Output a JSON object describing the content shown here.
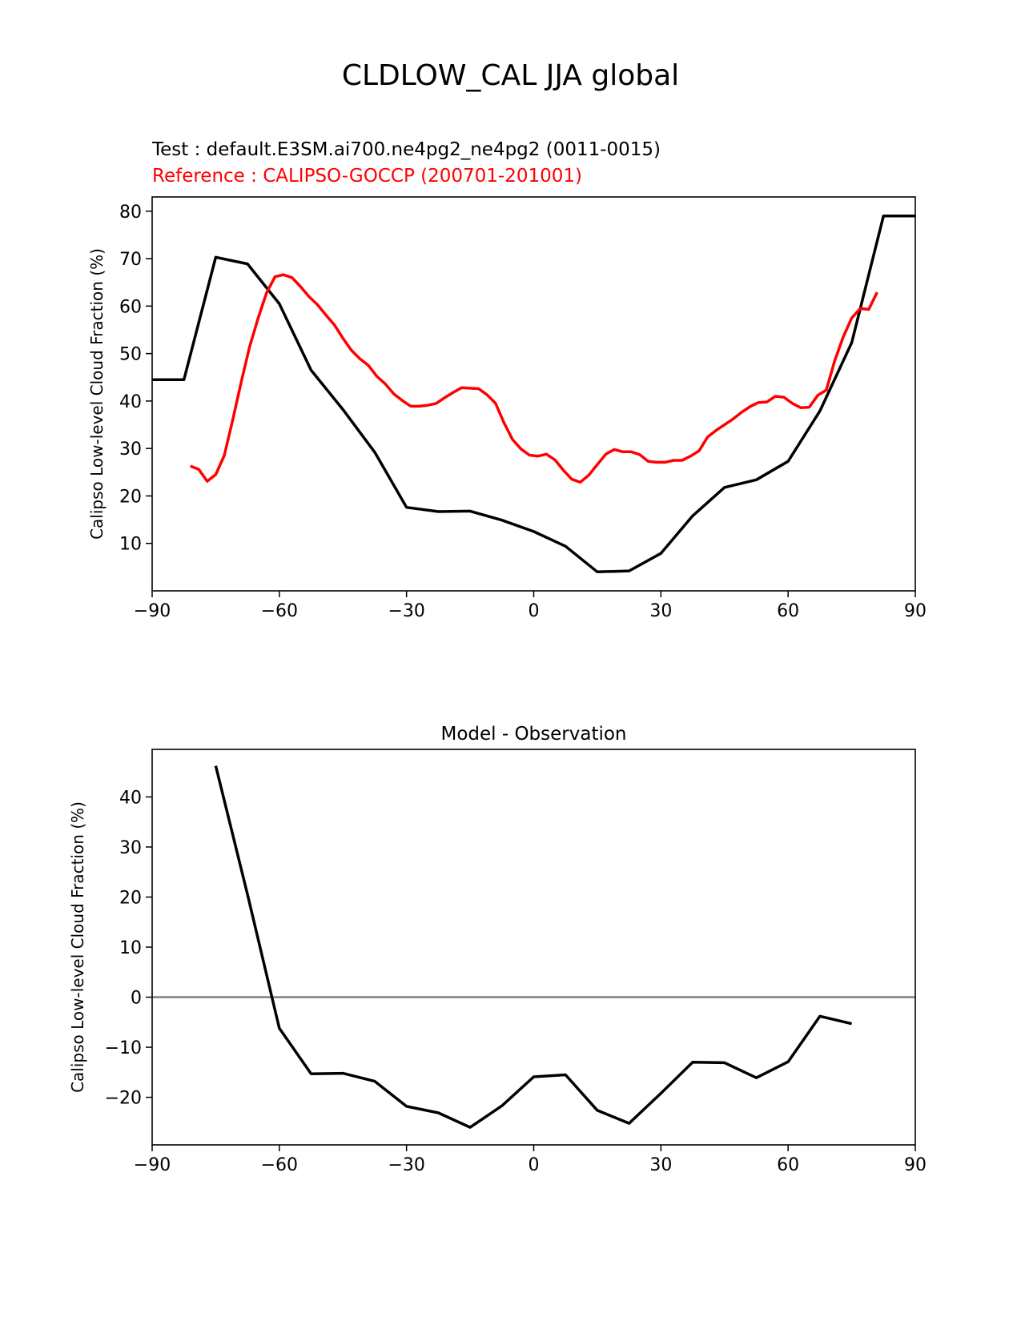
{
  "figure": {
    "title": "CLDLOW_CAL JJA global",
    "test_label": "Test : default.E3SM.ai700.ne4pg2_ne4pg2 (0011-0015)",
    "reference_label": "Reference : CALIPSO-GOCCP (200701-201001)"
  },
  "colors": {
    "test": "#000000",
    "reference": "#ff0000",
    "diff": "#000000",
    "zero_line": "#808080"
  },
  "chart_data": [
    {
      "type": "line",
      "title": "",
      "xlabel": "",
      "ylabel": "Calipso Low-level Cloud Fraction (%)",
      "xlim": [
        -90,
        90
      ],
      "ylim": [
        0,
        83
      ],
      "xticks": [
        -90,
        -60,
        -30,
        0,
        30,
        60,
        90
      ],
      "xtick_labels": [
        "−90",
        "−60",
        "−30",
        "0",
        "30",
        "60",
        "90"
      ],
      "yticks": [
        10,
        20,
        30,
        40,
        50,
        60,
        70,
        80
      ],
      "grid": false,
      "series": [
        {
          "name": "Test",
          "color": "#000000",
          "x": [
            -90,
            -82.5,
            -75,
            -67.5,
            -60,
            -52.5,
            -45,
            -37.5,
            -30,
            -22.5,
            -15,
            -7.5,
            0,
            7.5,
            15,
            22.5,
            30,
            37.5,
            45,
            52.5,
            60,
            67.5,
            75,
            82.5,
            90
          ],
          "y": [
            44.5,
            44.5,
            70.3,
            68.9,
            60.5,
            46.5,
            38.2,
            29.2,
            17.6,
            16.7,
            16.8,
            14.9,
            12.5,
            9.4,
            4.0,
            4.2,
            7.9,
            15.8,
            21.8,
            23.4,
            27.3,
            37.9,
            52.3,
            79.0,
            79.0
          ]
        },
        {
          "name": "Reference",
          "color": "#ff0000",
          "x": [
            -81,
            -79,
            -77,
            -75,
            -73,
            -71,
            -69,
            -67,
            -65,
            -63,
            -61,
            -59,
            -57,
            -55,
            -53,
            -51,
            -49,
            -47,
            -45,
            -43,
            -41,
            -39,
            -37,
            -35,
            -33,
            -31,
            -29,
            -27,
            -25,
            -23,
            -21,
            -19,
            -17,
            -15,
            -13,
            -11,
            -9,
            -7,
            -5,
            -3,
            -1,
            1,
            3,
            5,
            7,
            9,
            11,
            13,
            15,
            17,
            19,
            21,
            23,
            25,
            27,
            29,
            31,
            33,
            35,
            37,
            39,
            41,
            43,
            45,
            47,
            49,
            51,
            53,
            55,
            57,
            59,
            61,
            63,
            65,
            67,
            69,
            71,
            73,
            75,
            77,
            79,
            81
          ],
          "y": [
            26.3,
            25.6,
            23.1,
            24.5,
            28.5,
            36.0,
            44.0,
            51.5,
            57.5,
            62.8,
            66.2,
            66.6,
            66.0,
            64.1,
            62.0,
            60.3,
            58.1,
            56.0,
            53.2,
            50.7,
            48.9,
            47.5,
            45.2,
            43.6,
            41.5,
            40.1,
            38.9,
            38.9,
            39.1,
            39.5,
            40.7,
            41.8,
            42.8,
            42.7,
            42.6,
            41.3,
            39.5,
            35.4,
            31.9,
            29.9,
            28.6,
            28.4,
            28.8,
            27.6,
            25.4,
            23.5,
            22.9,
            24.4,
            26.6,
            28.8,
            29.8,
            29.3,
            29.3,
            28.7,
            27.3,
            27.1,
            27.1,
            27.5,
            27.5,
            28.4,
            29.5,
            32.4,
            33.8,
            35.0,
            36.2,
            37.6,
            38.8,
            39.7,
            39.8,
            41.0,
            40.8,
            39.5,
            38.6,
            38.7,
            41.2,
            42.3,
            48.5,
            53.5,
            57.5,
            59.5,
            59.3,
            62.9
          ]
        }
      ]
    },
    {
      "type": "line",
      "title": "Model - Observation",
      "xlabel": "",
      "ylabel": "Calipso Low-level Cloud Fraction (%)",
      "xlim": [
        -90,
        90
      ],
      "ylim": [
        -29.5,
        49.5
      ],
      "xticks": [
        -90,
        -60,
        -30,
        0,
        30,
        60,
        90
      ],
      "xtick_labels": [
        "−90",
        "−60",
        "−30",
        "0",
        "30",
        "60",
        "90"
      ],
      "yticks": [
        -20,
        -10,
        0,
        10,
        20,
        30,
        40
      ],
      "ytick_labels": [
        "−20",
        "−10",
        "0",
        "10",
        "20",
        "30",
        "40"
      ],
      "grid": false,
      "zero_line": 0,
      "series": [
        {
          "name": "Model - Observation",
          "color": "#000000",
          "x": [
            -75,
            -67.5,
            -60,
            -52.5,
            -45,
            -37.5,
            -30,
            -22.5,
            -15,
            -7.5,
            0,
            7.5,
            15,
            22.5,
            30,
            37.5,
            45,
            52.5,
            60,
            67.5,
            75
          ],
          "y": [
            46.2,
            20.5,
            -6.2,
            -15.3,
            -15.2,
            -16.8,
            -21.8,
            -23.1,
            -26.0,
            -21.7,
            -15.9,
            -15.5,
            -22.6,
            -25.2,
            -19.2,
            -13.0,
            -13.1,
            -16.1,
            -12.9,
            -3.8,
            -5.3
          ]
        }
      ]
    }
  ]
}
